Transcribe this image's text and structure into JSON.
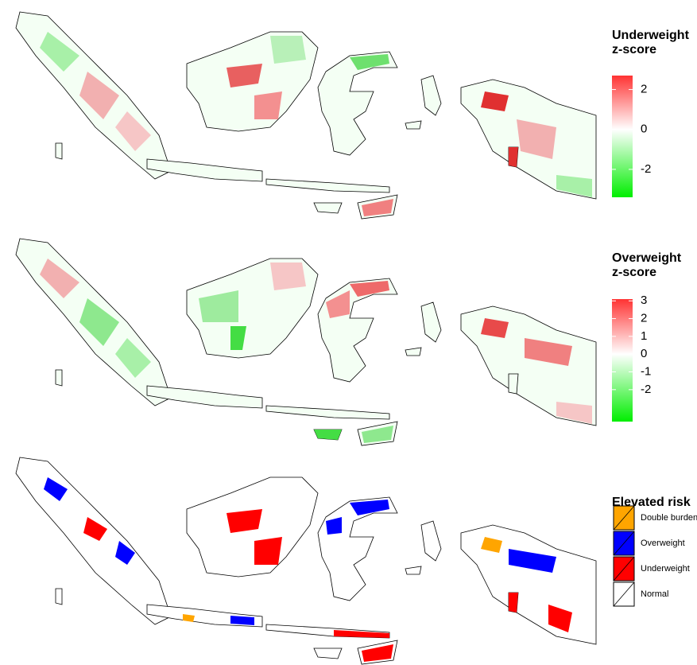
{
  "panels": [
    {
      "title_lines": [
        "Underweight",
        "z-score"
      ],
      "range": [
        -3.4,
        2.7
      ],
      "ticks": [
        2,
        0,
        -2
      ],
      "low_color": "#00ee00",
      "mid_color": "#ffffff",
      "high_color": "#ff3333"
    },
    {
      "title_lines": [
        "Overweight",
        "z-score"
      ],
      "range": [
        -3.8,
        3.1
      ],
      "ticks": [
        3,
        2,
        1,
        0,
        -1,
        -2
      ],
      "low_color": "#00ee00",
      "mid_color": "#ffffff",
      "high_color": "#ff3333"
    }
  ],
  "risk_legend": {
    "title": "Elevated risk",
    "entries": [
      {
        "name": "Double burden",
        "color": "#ffa500"
      },
      {
        "name": "Overweight",
        "color": "#0000ff"
      },
      {
        "name": "Underweight",
        "color": "#ff0000"
      },
      {
        "name": "Normal",
        "color": "#ffffff"
      }
    ]
  }
}
